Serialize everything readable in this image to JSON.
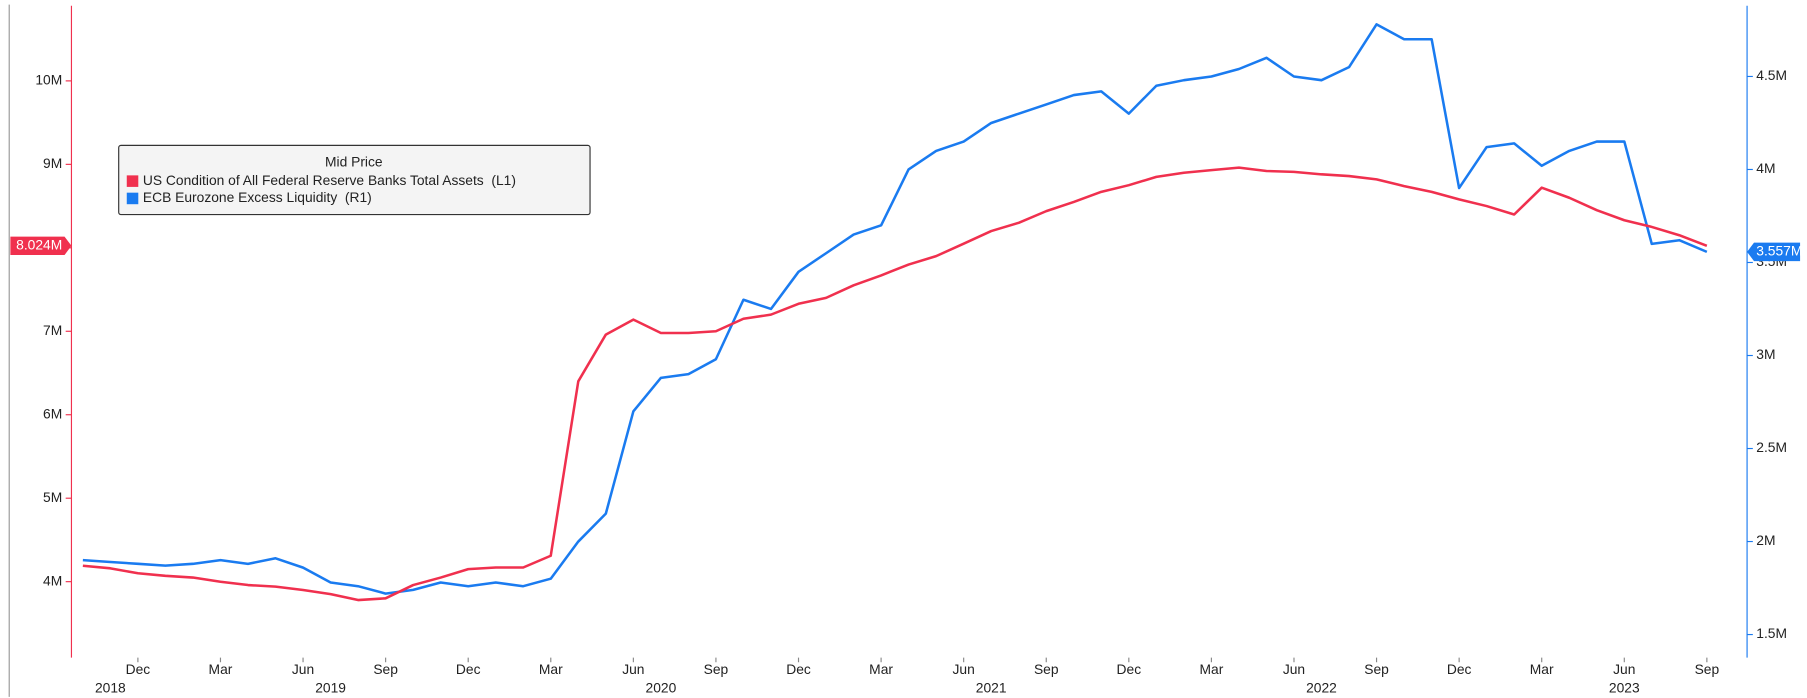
{
  "chart_data": {
    "type": "line",
    "legend_title": "Mid Price",
    "legend_position": "upper left",
    "x": [
      "2018-10",
      "2018-11",
      "2018-12",
      "2019-01",
      "2019-02",
      "2019-03",
      "2019-04",
      "2019-05",
      "2019-06",
      "2019-07",
      "2019-08",
      "2019-09",
      "2019-10",
      "2019-11",
      "2019-12",
      "2020-01",
      "2020-02",
      "2020-03",
      "2020-04",
      "2020-05",
      "2020-06",
      "2020-07",
      "2020-08",
      "2020-09",
      "2020-10",
      "2020-11",
      "2020-12",
      "2021-01",
      "2021-02",
      "2021-03",
      "2021-04",
      "2021-05",
      "2021-06",
      "2021-07",
      "2021-08",
      "2021-09",
      "2021-10",
      "2021-11",
      "2021-12",
      "2022-01",
      "2022-02",
      "2022-03",
      "2022-04",
      "2022-05",
      "2022-06",
      "2022-07",
      "2022-08",
      "2022-09",
      "2022-10",
      "2022-11",
      "2022-12",
      "2023-01",
      "2023-02",
      "2023-03",
      "2023-04",
      "2023-05",
      "2023-06",
      "2023-07",
      "2023-08",
      "2023-09"
    ],
    "xlim": [
      "2018-09",
      "2023-10"
    ],
    "xticks": [
      {
        "value": "2018-12",
        "label": "Dec"
      },
      {
        "value": "2019-03",
        "label": "Mar"
      },
      {
        "value": "2019-06",
        "label": "Jun"
      },
      {
        "value": "2019-09",
        "label": "Sep"
      },
      {
        "value": "2019-12",
        "label": "Dec"
      },
      {
        "value": "2020-03",
        "label": "Mar"
      },
      {
        "value": "2020-06",
        "label": "Jun"
      },
      {
        "value": "2020-09",
        "label": "Sep"
      },
      {
        "value": "2020-12",
        "label": "Dec"
      },
      {
        "value": "2021-03",
        "label": "Mar"
      },
      {
        "value": "2021-06",
        "label": "Jun"
      },
      {
        "value": "2021-09",
        "label": "Sep"
      },
      {
        "value": "2021-12",
        "label": "Dec"
      },
      {
        "value": "2022-03",
        "label": "Mar"
      },
      {
        "value": "2022-06",
        "label": "Jun"
      },
      {
        "value": "2022-09",
        "label": "Sep"
      },
      {
        "value": "2022-12",
        "label": "Dec"
      },
      {
        "value": "2023-03",
        "label": "Mar"
      },
      {
        "value": "2023-06",
        "label": "Jun"
      },
      {
        "value": "2023-09",
        "label": "Sep"
      }
    ],
    "x_year_labels": [
      {
        "value": "2018-11",
        "label": "2018"
      },
      {
        "value": "2019-07",
        "label": "2019"
      },
      {
        "value": "2020-07",
        "label": "2020"
      },
      {
        "value": "2021-07",
        "label": "2021"
      },
      {
        "value": "2022-07",
        "label": "2022"
      },
      {
        "value": "2023-06",
        "label": "2023"
      }
    ],
    "ylim": [
      3090000,
      10900000
    ],
    "yticks": [
      {
        "value": 4000000,
        "label": "4M"
      },
      {
        "value": 5000000,
        "label": "5M"
      },
      {
        "value": 6000000,
        "label": "6M"
      },
      {
        "value": 7000000,
        "label": "7M"
      },
      {
        "value": 8000000,
        "label": "8M"
      },
      {
        "value": 9000000,
        "label": "9M"
      },
      {
        "value": 10000000,
        "label": "10M"
      }
    ],
    "y2lim": [
      1376000,
      4880000
    ],
    "y2ticks": [
      {
        "value": 1500000,
        "label": "1.5M"
      },
      {
        "value": 2000000,
        "label": "2M"
      },
      {
        "value": 2500000,
        "label": "2.5M"
      },
      {
        "value": 3000000,
        "label": "3M"
      },
      {
        "value": 3500000,
        "label": "3.5M"
      },
      {
        "value": 4000000,
        "label": "4M"
      },
      {
        "value": 4500000,
        "label": "4.5M"
      }
    ],
    "series": [
      {
        "name": "US Condition of All Federal Reserve Banks Total Assets  (L1)",
        "color": "#f0304e",
        "axis": "y",
        "last_value_label": "8.024M",
        "values": [
          4190000,
          4160000,
          4100000,
          4070000,
          4050000,
          4000000,
          3960000,
          3940000,
          3900000,
          3850000,
          3780000,
          3800000,
          3960000,
          4050000,
          4150000,
          4170000,
          4170000,
          4310000,
          6400000,
          6960000,
          7140000,
          6980000,
          6980000,
          7000000,
          7150000,
          7200000,
          7330000,
          7400000,
          7550000,
          7670000,
          7800000,
          7900000,
          8050000,
          8200000,
          8300000,
          8440000,
          8550000,
          8670000,
          8750000,
          8850000,
          8900000,
          8930000,
          8960000,
          8920000,
          8910000,
          8880000,
          8860000,
          8820000,
          8740000,
          8670000,
          8580000,
          8500000,
          8400000,
          8720000,
          8600000,
          8450000,
          8330000,
          8250000,
          8150000,
          8024000
        ]
      },
      {
        "name": "ECB Eurozone Excess Liquidity  (R1)",
        "color": "#1a7bf0",
        "axis": "y2",
        "last_value_label": "3.557M",
        "values": [
          1900000,
          1890000,
          1880000,
          1870000,
          1880000,
          1900000,
          1880000,
          1910000,
          1860000,
          1780000,
          1760000,
          1720000,
          1740000,
          1780000,
          1760000,
          1780000,
          1760000,
          1800000,
          2000000,
          2150000,
          2700000,
          2880000,
          2900000,
          2980000,
          3300000,
          3250000,
          3450000,
          3550000,
          3650000,
          3700000,
          4000000,
          4100000,
          4150000,
          4250000,
          4300000,
          4350000,
          4400000,
          4420000,
          4300000,
          4450000,
          4480000,
          4500000,
          4540000,
          4600000,
          4500000,
          4480000,
          4550000,
          4780000,
          4700000,
          4700000,
          3900000,
          4120000,
          4140000,
          4020000,
          4100000,
          4150000,
          4150000,
          3600000,
          3620000,
          3557000
        ]
      }
    ]
  }
}
